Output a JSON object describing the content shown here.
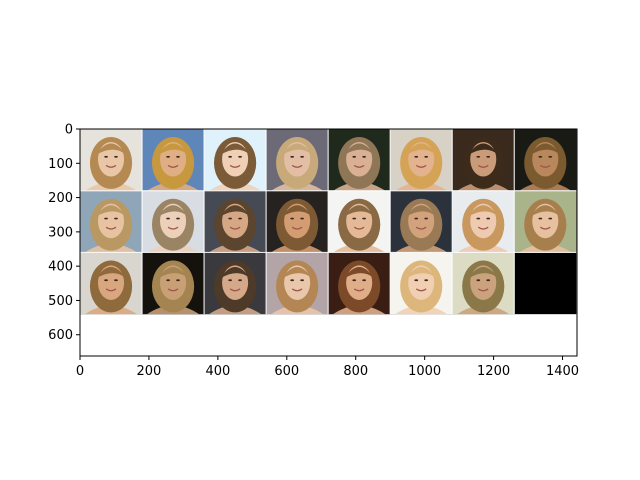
{
  "figure": {
    "image_grid": {
      "rows": 3,
      "cols": 8,
      "cell_size": 180,
      "tile_count": 23,
      "tiles": [
        {
          "row": 0,
          "col": 0,
          "bg": "#e6e2dc",
          "face": "#e9c6a6",
          "hair": "#b48a52"
        },
        {
          "row": 0,
          "col": 1,
          "bg": "#5f86b8",
          "face": "#dfae85",
          "hair": "#c8983e"
        },
        {
          "row": 0,
          "col": 2,
          "bg": "#dff1fb",
          "face": "#efcfb6",
          "hair": "#7a5a37"
        },
        {
          "row": 0,
          "col": 3,
          "bg": "#6d6a78",
          "face": "#e2bfa4",
          "hair": "#c8aa7a"
        },
        {
          "row": 0,
          "col": 4,
          "bg": "#1f2a1d",
          "face": "#d9b094",
          "hair": "#8f7656"
        },
        {
          "row": 0,
          "col": 5,
          "bg": "#d8d2c6",
          "face": "#e3b28e",
          "hair": "#d4a356"
        },
        {
          "row": 0,
          "col": 6,
          "bg": "#3a2a1e",
          "face": "#c99b79",
          "hair": "#3c2a1a"
        },
        {
          "row": 0,
          "col": 7,
          "bg": "#1a1a14",
          "face": "#b9875c",
          "hair": "#7a5a2e"
        },
        {
          "row": 1,
          "col": 0,
          "bg": "#8fa6b8",
          "face": "#e7c3a2",
          "hair": "#b99863"
        },
        {
          "row": 1,
          "col": 1,
          "bg": "#d8dde4",
          "face": "#edd0ba",
          "hair": "#9b8463"
        },
        {
          "row": 1,
          "col": 2,
          "bg": "#454a55",
          "face": "#d6a785",
          "hair": "#5c452f"
        },
        {
          "row": 1,
          "col": 3,
          "bg": "#262220",
          "face": "#d39c72",
          "hair": "#7d5a33"
        },
        {
          "row": 1,
          "col": 4,
          "bg": "#f4f4f2",
          "face": "#e4b997",
          "hair": "#8a6a44"
        },
        {
          "row": 1,
          "col": 5,
          "bg": "#2c323c",
          "face": "#d1a27c",
          "hair": "#9a7a55"
        },
        {
          "row": 1,
          "col": 6,
          "bg": "#e8ecef",
          "face": "#edcab0",
          "hair": "#c9985e"
        },
        {
          "row": 1,
          "col": 7,
          "bg": "#a9b48a",
          "face": "#e6c09f",
          "hair": "#a77f4c"
        },
        {
          "row": 2,
          "col": 0,
          "bg": "#d9d6d0",
          "face": "#d9a77f",
          "hair": "#8e6a3c"
        },
        {
          "row": 2,
          "col": 1,
          "bg": "#15120e",
          "face": "#c9a076",
          "hair": "#a48552"
        },
        {
          "row": 2,
          "col": 2,
          "bg": "#3a3a3e",
          "face": "#d4a889",
          "hair": "#4e3a28"
        },
        {
          "row": 2,
          "col": 3,
          "bg": "#b3a4a8",
          "face": "#e9c7aa",
          "hair": "#b48653"
        },
        {
          "row": 2,
          "col": 4,
          "bg": "#3a1e14",
          "face": "#dfae88",
          "hair": "#7c4a28"
        },
        {
          "row": 2,
          "col": 5,
          "bg": "#f6f4ef",
          "face": "#f0cfb2",
          "hair": "#dcb67a"
        },
        {
          "row": 2,
          "col": 6,
          "bg": "#dcdcc4",
          "face": "#caa27d",
          "hair": "#8a7848"
        }
      ],
      "empty_color": "#000000"
    },
    "x_axis": {
      "ticks": [
        {
          "value": 0,
          "label": "0"
        },
        {
          "value": 200,
          "label": "200"
        },
        {
          "value": 400,
          "label": "400"
        },
        {
          "value": 600,
          "label": "600"
        },
        {
          "value": 800,
          "label": "800"
        },
        {
          "value": 1000,
          "label": "1000"
        },
        {
          "value": 1200,
          "label": "1200"
        },
        {
          "value": 1400,
          "label": "1400"
        }
      ],
      "range": [
        0,
        1442
      ]
    },
    "y_axis": {
      "ticks": [
        {
          "value": 0,
          "label": "0"
        },
        {
          "value": 100,
          "label": "100"
        },
        {
          "value": 200,
          "label": "200"
        },
        {
          "value": 300,
          "label": "300"
        },
        {
          "value": 400,
          "label": "400"
        },
        {
          "value": 500,
          "label": "500"
        },
        {
          "value": 600,
          "label": "600"
        }
      ],
      "range": [
        0,
        662
      ]
    }
  }
}
